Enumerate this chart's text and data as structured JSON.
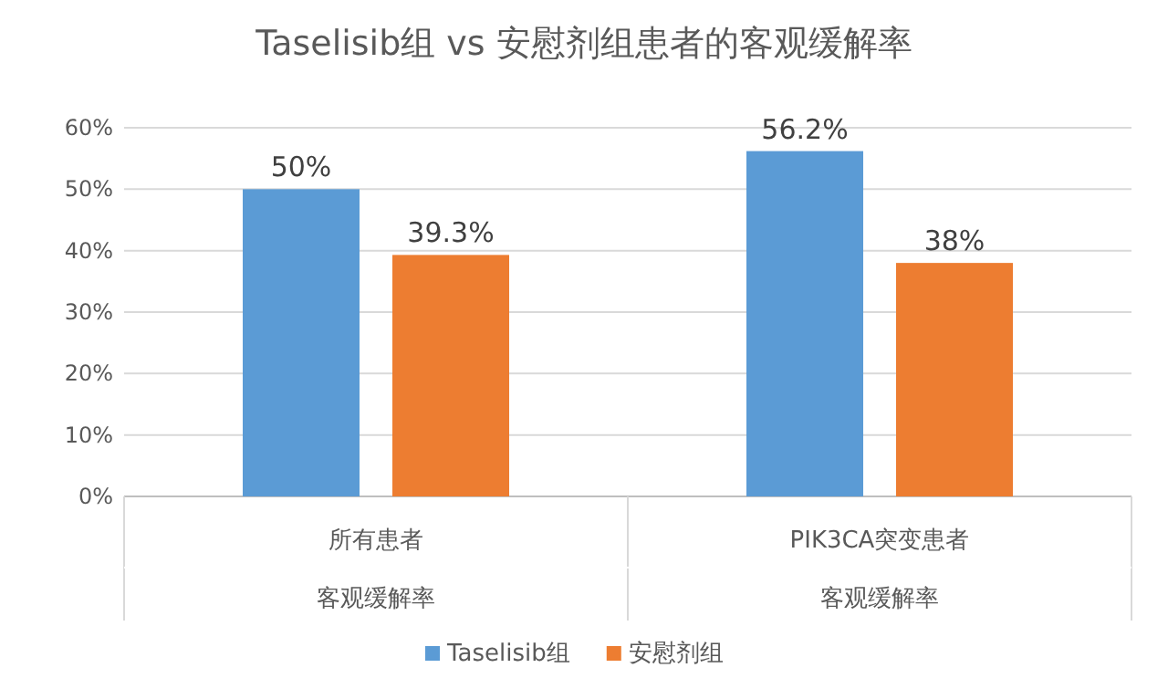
{
  "chart_data": {
    "type": "bar",
    "title": "Taselisib组 vs 安慰剂组患者的客观缓解率",
    "categories": [
      "所有患者",
      "PIK3CA突变患者"
    ],
    "annotations": [
      "客观缓解率",
      "客观缓解率"
    ],
    "series": [
      {
        "name": "Taselisib组",
        "color": "#5b9bd5",
        "values": [
          50,
          56.2
        ],
        "value_labels": [
          "50%",
          "56.2%"
        ]
      },
      {
        "name": "安慰剂组",
        "color": "#ed7d31",
        "values": [
          39.3,
          38
        ],
        "value_labels": [
          "39.3%",
          "38%"
        ]
      }
    ],
    "ylim": [
      0,
      60
    ],
    "yticks": [
      {
        "value": 0,
        "label": "0%"
      },
      {
        "value": 10,
        "label": "10%"
      },
      {
        "value": 20,
        "label": "20%"
      },
      {
        "value": 30,
        "label": "30%"
      },
      {
        "value": 40,
        "label": "40%"
      },
      {
        "value": 50,
        "label": "50%"
      },
      {
        "value": 60,
        "label": "60%"
      }
    ],
    "grid": "y",
    "legend": "bottom"
  }
}
